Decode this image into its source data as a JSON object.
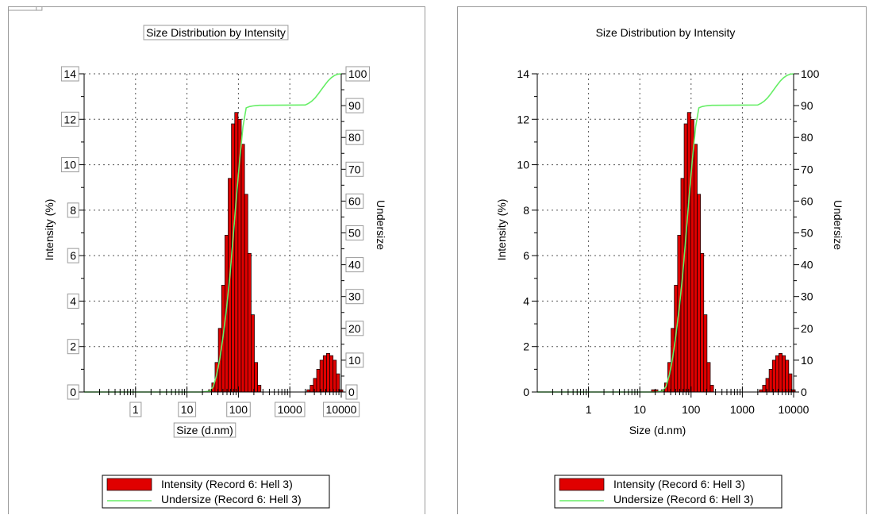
{
  "colors": {
    "bar_fill": "#e00000",
    "bar_edge": "#000000",
    "undersize_line": "#66ee66",
    "grid": "#555555",
    "frame": "#000000",
    "panel_border": "#9a9a9a"
  },
  "chart_data": [
    {
      "type": "bar",
      "title": "Size Distribution by Intensity",
      "xlabel": "Size (d.nm)",
      "ylabel": "Intensity (%)",
      "y2label": "Undersize",
      "xscale": "log",
      "xlim": [
        0.1,
        10000
      ],
      "ylim": [
        0,
        14
      ],
      "y2lim": [
        0,
        100
      ],
      "xticks": [
        1,
        10,
        100,
        1000,
        10000
      ],
      "xtick_labels": [
        "1",
        "10",
        "100",
        "1000",
        "10000"
      ],
      "yticks": [
        0,
        2,
        4,
        6,
        8,
        10,
        12,
        14
      ],
      "y2ticks": [
        0,
        10,
        20,
        30,
        40,
        50,
        60,
        70,
        80,
        90,
        100
      ],
      "grid": true,
      "legend_position": "bottom",
      "boxed_labels": true,
      "series": [
        {
          "name": "Intensity (Record 6: Hell 3)",
          "type": "bar",
          "x": [
            15.7,
            18.2,
            21.0,
            24.4,
            28.2,
            32.7,
            37.8,
            43.8,
            50.7,
            58.8,
            68.1,
            78.8,
            91.3,
            105.7,
            122.4,
            141.8,
            164.2,
            190.1,
            220.2,
            255.0,
            295.3,
            342.0,
            396.1,
            458.7,
            531.2,
            615.1,
            712.4,
            825.0,
            955.4,
            1106,
            1281,
            1484,
            1718,
            1990,
            2305,
            2669,
            3091,
            3580,
            4145,
            4801,
            5560,
            6439,
            7456,
            8635,
            10000
          ],
          "values": [
            0,
            0,
            0,
            0,
            0.1,
            0.4,
            1.3,
            2.8,
            4.7,
            6.9,
            9.4,
            11.8,
            12.3,
            12.0,
            10.9,
            8.7,
            6.1,
            3.4,
            1.3,
            0.3,
            0,
            0,
            0,
            0,
            0,
            0,
            0,
            0,
            0,
            0,
            0,
            0,
            0,
            0,
            0.1,
            0.3,
            0.6,
            1.0,
            1.4,
            1.6,
            1.7,
            1.6,
            1.4,
            0.8,
            0.1
          ]
        },
        {
          "name": "Undersize (Record 6: Hell 3)",
          "type": "line",
          "x": [
            0.1,
            20,
            28.2,
            32.7,
            37.8,
            43.8,
            50.7,
            58.8,
            68.1,
            78.8,
            91.3,
            105.7,
            122.4,
            141.8,
            164.2,
            190.1,
            220.2,
            255.0,
            295.3,
            1990,
            2305,
            2669,
            3091,
            3580,
            4145,
            4801,
            5560,
            6439,
            7456,
            8635,
            10000
          ],
          "values": [
            0,
            0,
            0.3,
            1.8,
            5.4,
            10.8,
            17.9,
            26.4,
            36.2,
            48.4,
            61.0,
            73.0,
            83.3,
            89.3,
            89.7,
            89.9,
            90.0,
            90.1,
            90.1,
            90.2,
            90.7,
            91.4,
            92.4,
            93.7,
            95.1,
            96.5,
            97.8,
            98.8,
            99.5,
            99.9,
            100
          ]
        }
      ]
    },
    {
      "type": "bar",
      "title": "Size Distribution by Intensity",
      "xlabel": "Size (d.nm)",
      "ylabel": "Intensity (%)",
      "y2label": "Undersize",
      "xscale": "log",
      "xlim": [
        0.1,
        10000
      ],
      "ylim": [
        0,
        14
      ],
      "y2lim": [
        0,
        100
      ],
      "xticks": [
        1,
        10,
        100,
        1000,
        10000
      ],
      "xtick_labels": [
        "1",
        "10",
        "100",
        "1000",
        "10000"
      ],
      "yticks": [
        0,
        2,
        4,
        6,
        8,
        10,
        12,
        14
      ],
      "y2ticks": [
        0,
        10,
        20,
        30,
        40,
        50,
        60,
        70,
        80,
        90,
        100
      ],
      "grid": true,
      "legend_position": "bottom",
      "boxed_labels": false,
      "series": [
        {
          "name": "Intensity (Record 6: Hell 3)",
          "type": "bar",
          "x": [
            15.7,
            18.2,
            21.0,
            24.4,
            28.2,
            32.7,
            37.8,
            43.8,
            50.7,
            58.8,
            68.1,
            78.8,
            91.3,
            105.7,
            122.4,
            141.8,
            164.2,
            190.1,
            220.2,
            255.0,
            295.3,
            342.0,
            396.1,
            458.7,
            531.2,
            615.1,
            712.4,
            825.0,
            955.4,
            1106,
            1281,
            1484,
            1718,
            1990,
            2305,
            2669,
            3091,
            3580,
            4145,
            4801,
            5560,
            6439,
            7456,
            8635,
            10000
          ],
          "values": [
            0,
            0.1,
            0.1,
            0,
            0.1,
            0.4,
            1.3,
            2.8,
            4.7,
            6.9,
            9.4,
            11.8,
            12.3,
            12.0,
            10.9,
            8.7,
            6.1,
            3.4,
            1.3,
            0.3,
            0,
            0,
            0,
            0,
            0,
            0,
            0,
            0,
            0,
            0,
            0,
            0,
            0,
            0,
            0.1,
            0.3,
            0.6,
            1.0,
            1.4,
            1.6,
            1.7,
            1.6,
            1.4,
            0.8,
            0.1
          ]
        },
        {
          "name": "Undersize (Record 6: Hell 3)",
          "type": "line",
          "x": [
            0.1,
            20,
            28.2,
            32.7,
            37.8,
            43.8,
            50.7,
            58.8,
            68.1,
            78.8,
            91.3,
            105.7,
            122.4,
            141.8,
            164.2,
            190.1,
            220.2,
            255.0,
            295.3,
            1990,
            2305,
            2669,
            3091,
            3580,
            4145,
            4801,
            5560,
            6439,
            7456,
            8635,
            10000
          ],
          "values": [
            0,
            0,
            0.3,
            1.8,
            5.4,
            10.8,
            17.9,
            26.4,
            36.2,
            48.4,
            61.0,
            73.0,
            83.3,
            89.3,
            89.7,
            89.9,
            90.0,
            90.1,
            90.1,
            90.2,
            90.7,
            91.4,
            92.4,
            93.7,
            95.1,
            96.5,
            97.8,
            98.8,
            99.5,
            99.9,
            100
          ]
        }
      ]
    }
  ]
}
